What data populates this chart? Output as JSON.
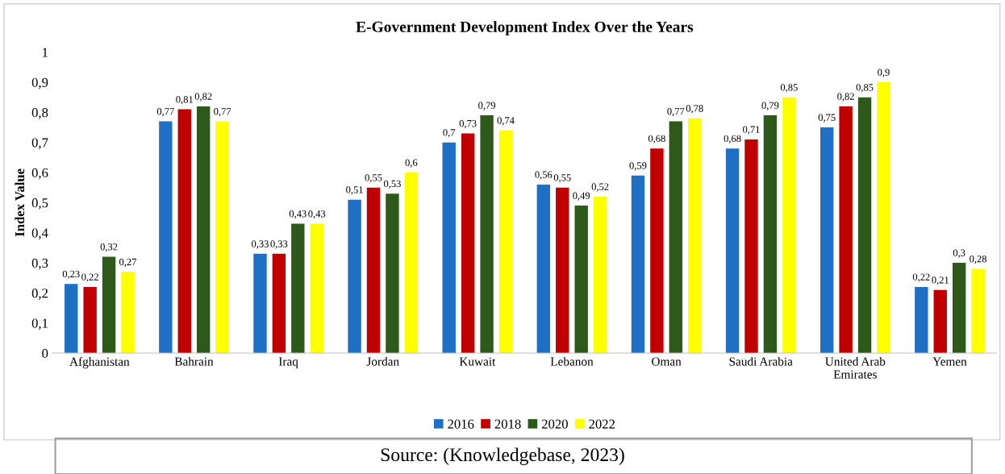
{
  "chart_data": {
    "type": "bar",
    "title": "E-Government Development Index Over the Years",
    "ylabel": "Index Value",
    "categories": [
      "Afghanistan",
      "Bahrain",
      "Iraq",
      "Jordan",
      "Kuwait",
      "Lebanon",
      "Oman",
      "Saudi Arabia",
      "United Arab\nEmirates",
      "Yemen"
    ],
    "series": [
      {
        "name": "2016",
        "color": "#1f6fc5",
        "values": [
          0.23,
          0.77,
          0.33,
          0.51,
          0.7,
          0.56,
          0.59,
          0.68,
          0.75,
          0.22
        ],
        "value_labels": [
          "0,23",
          "0,77",
          "0,33",
          "0,51",
          "0,7",
          "0,56",
          "0,59",
          "0,68",
          "0,75",
          "0,22"
        ]
      },
      {
        "name": "2018",
        "color": "#c00000",
        "values": [
          0.22,
          0.81,
          0.33,
          0.55,
          0.73,
          0.55,
          0.68,
          0.71,
          0.82,
          0.21
        ],
        "value_labels": [
          "0,22",
          "0,81",
          "0,33",
          "0,55",
          "0,73",
          "0,55",
          "0,68",
          "0,71",
          "0,82",
          "0,21"
        ]
      },
      {
        "name": "2020",
        "color": "#2d5a1b",
        "values": [
          0.32,
          0.82,
          0.43,
          0.53,
          0.79,
          0.49,
          0.77,
          0.79,
          0.85,
          0.3
        ],
        "value_labels": [
          "0,32",
          "0,82",
          "0,43",
          "0,53",
          "0,79",
          "0,49",
          "0,77",
          "0,79",
          "0,85",
          "0,3"
        ]
      },
      {
        "name": "2022",
        "color": "#ffff00",
        "values": [
          0.27,
          0.77,
          0.43,
          0.6,
          0.74,
          0.52,
          0.78,
          0.85,
          0.9,
          0.28
        ],
        "value_labels": [
          "0,27",
          "0,77",
          "0,43",
          "0,6",
          "0,74",
          "0,52",
          "0,78",
          "0,85",
          "0,9",
          "0,28"
        ]
      }
    ],
    "ylim": [
      0,
      1
    ],
    "yticks": [
      0,
      {
        "value": 0.1,
        "label": "0,1"
      },
      {
        "value": 0.2,
        "label": "0,2"
      },
      {
        "value": 0.3,
        "label": "0,3"
      },
      {
        "value": 0.4,
        "label": "0,4"
      },
      {
        "value": 0.5,
        "label": "0,5"
      },
      {
        "value": 0.6,
        "label": "0,6"
      },
      {
        "value": 0.7,
        "label": "0,7"
      },
      {
        "value": 0.8,
        "label": "0,8"
      },
      {
        "value": 0.9,
        "label": "0,9"
      },
      1
    ],
    "grid": false,
    "legend": "bottom",
    "annotations": [
      "Source: (Knowledgebase, 2023)"
    ]
  }
}
